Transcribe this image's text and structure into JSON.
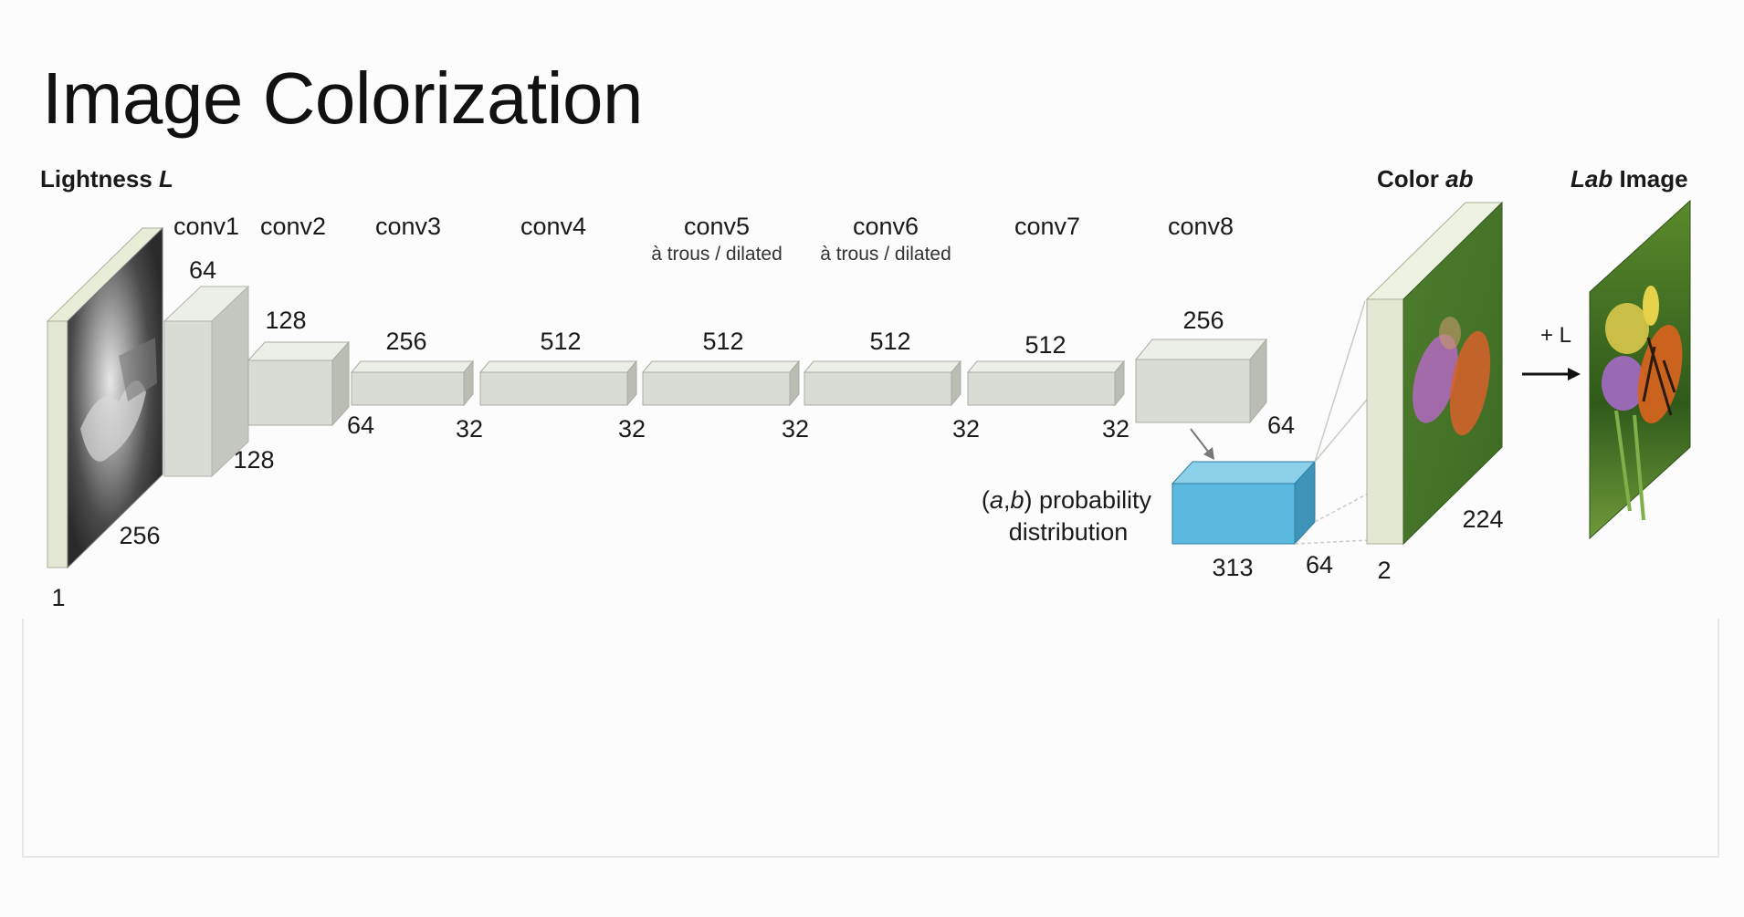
{
  "slide": {
    "title": "Image Colorization"
  },
  "diagram": {
    "input_header": {
      "prefix": "Lightness ",
      "var": "L"
    },
    "color_header": {
      "prefix": "Color ",
      "var": "ab"
    },
    "output_header": {
      "var": "Lab",
      "suffix": " Image"
    },
    "layers": [
      {
        "name": "conv1",
        "note": ""
      },
      {
        "name": "conv2",
        "note": ""
      },
      {
        "name": "conv3",
        "note": ""
      },
      {
        "name": "conv4",
        "note": ""
      },
      {
        "name": "conv5",
        "note": "à trous / dilated"
      },
      {
        "name": "conv6",
        "note": "à trous / dilated"
      },
      {
        "name": "conv7",
        "note": ""
      },
      {
        "name": "conv8",
        "note": ""
      }
    ],
    "dims": {
      "input_channels": "1",
      "input_size": "256",
      "conv1_channels": "64",
      "conv1_size": "128",
      "conv2_channels": "128",
      "conv2_size": "64",
      "conv3_channels": "256",
      "conv3_size": "32",
      "conv4_channels": "512",
      "conv4_size": "32",
      "conv5_channels": "512",
      "conv5_size": "32",
      "conv6_channels": "512",
      "conv6_size": "32",
      "conv7_channels": "512",
      "conv7_size": "32",
      "conv8_channels": "256",
      "conv8_size": "64",
      "dist_channels": "313",
      "dist_size": "64",
      "ab_channels": "2",
      "ab_size": "224"
    },
    "prob_label": {
      "open": "(",
      "a": "a",
      "comma": ",",
      "b": "b",
      "close": ") probability",
      "line2": "distribution"
    },
    "plus_l": "+ L",
    "colors": {
      "block_face": "#d9dcd4",
      "block_top": "#eceee8",
      "block_side": "#b9bdb3",
      "dist_face": "#5bb8de",
      "dist_top": "#8ccfe9",
      "dist_side": "#3d93b8",
      "image_frame": "#e3e8d5"
    }
  }
}
